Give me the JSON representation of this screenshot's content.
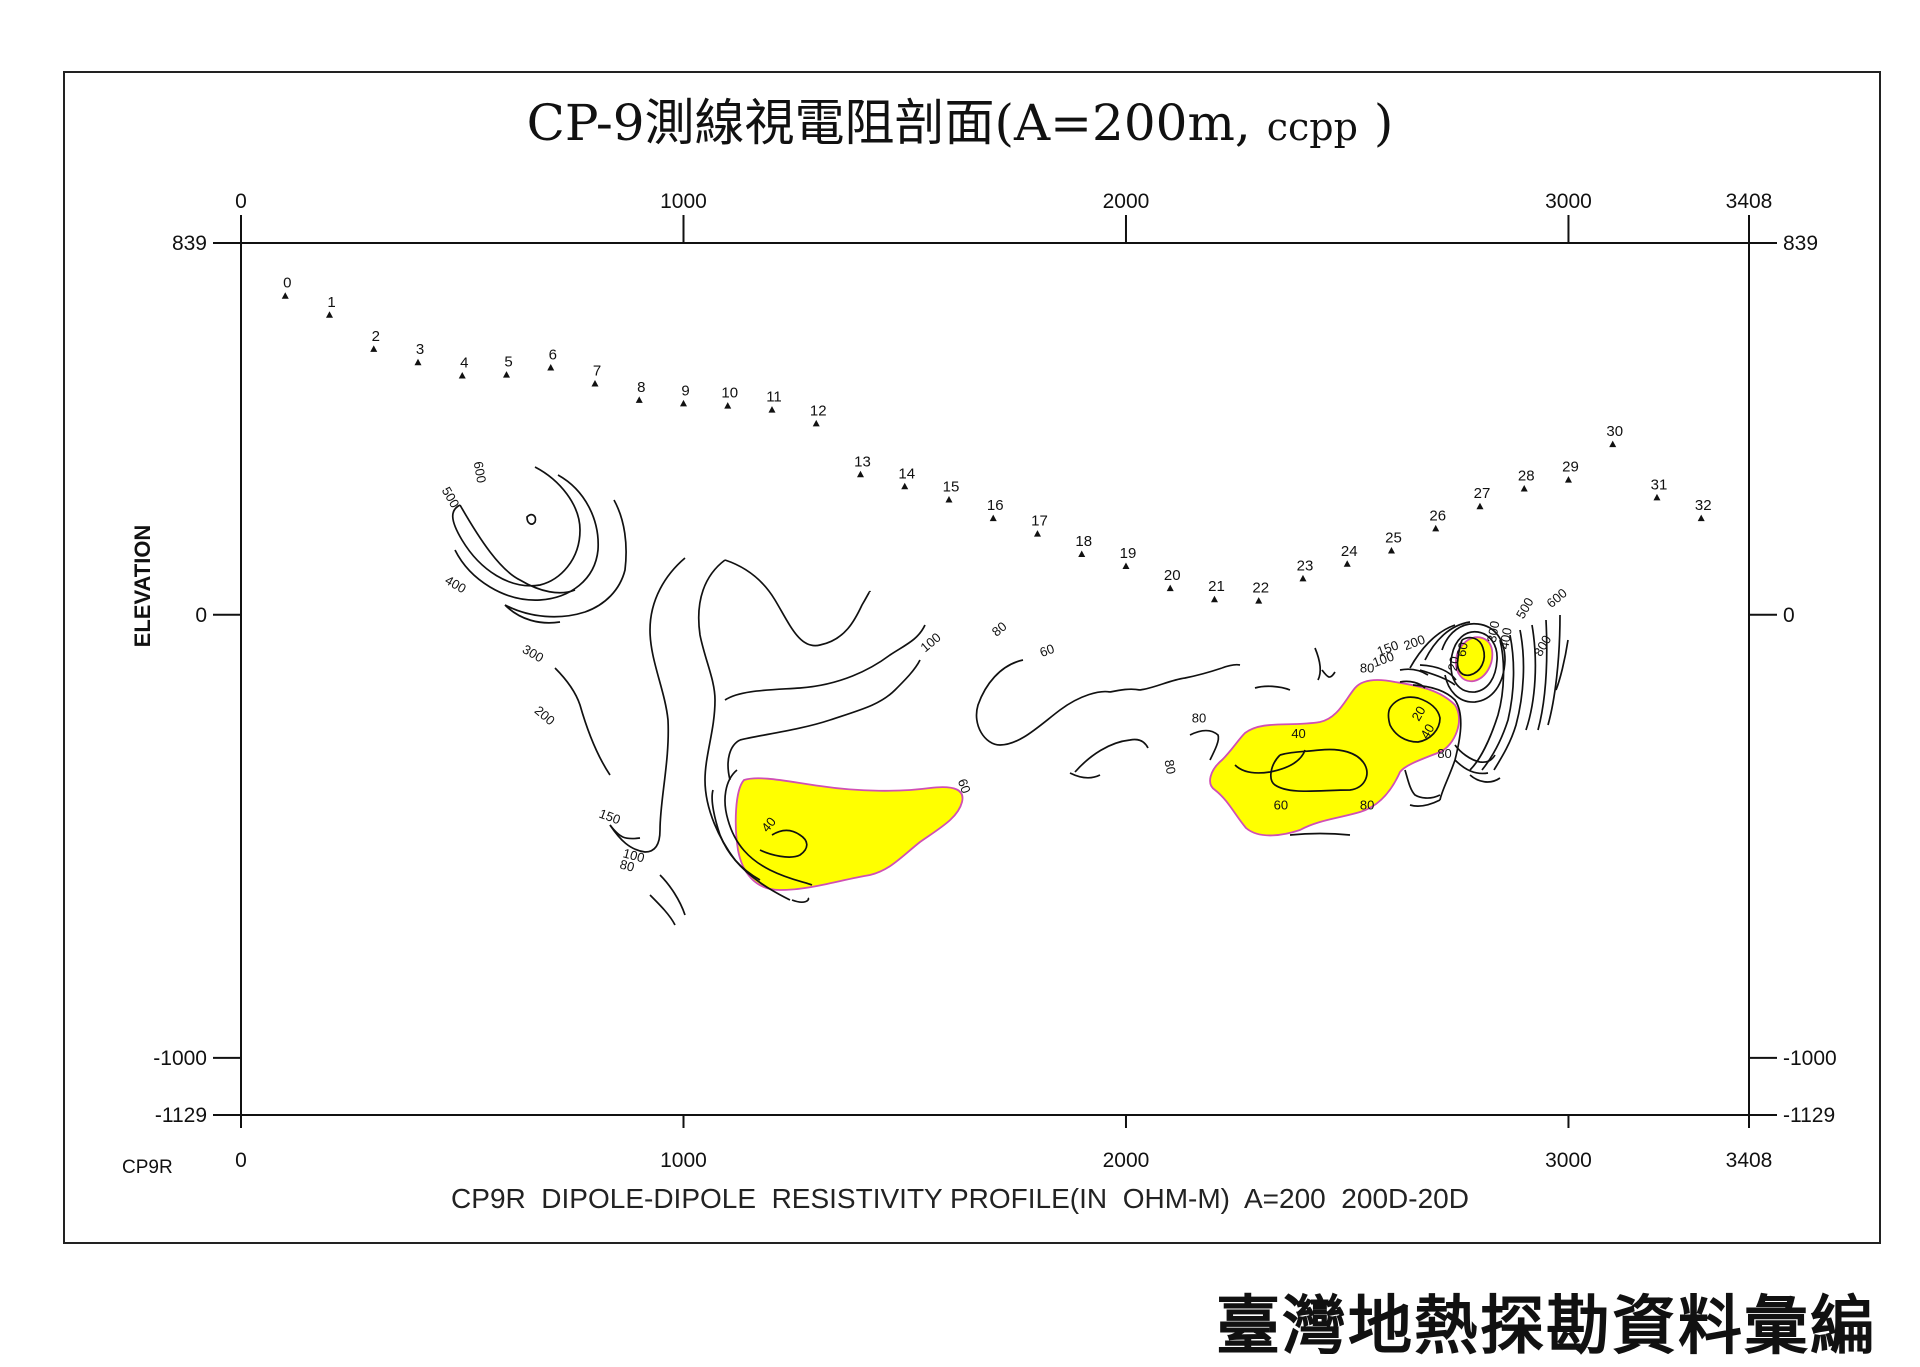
{
  "title_main": "CP-9測線視電阻剖面(A=200m,",
  "title_small": "ccpp",
  "title_end": ")",
  "subtitle": "CP9R  DIPOLE-DIPOLE  RESISTIVITY PROFILE(IN  OHM-M)  A=200  200D-20D",
  "footer": "臺灣地熱探勘資料彙編",
  "corner_label": "CP9R",
  "colors": {
    "anomaly_fill": "#ffff00",
    "anomaly_edge": "#d04fb5",
    "line": "#111111"
  },
  "chart_data": {
    "type": "contour",
    "xlim": [
      0,
      3408
    ],
    "ylim": [
      -1129,
      839
    ],
    "x_ticks": [
      "0",
      "1000",
      "2000",
      "3000",
      "3408"
    ],
    "x_tick_values": [
      0,
      1000,
      2000,
      3000,
      3408
    ],
    "y_ticks": [
      "839",
      "0",
      "-1000",
      "-1129"
    ],
    "y_tick_values": [
      839,
      0,
      -1000,
      -1129
    ],
    "ylabel": "ELEVATION",
    "stations": [
      {
        "id": "0",
        "x": 100,
        "y": 720
      },
      {
        "id": "1",
        "x": 200,
        "y": 677
      },
      {
        "id": "2",
        "x": 300,
        "y": 600
      },
      {
        "id": "3",
        "x": 400,
        "y": 570
      },
      {
        "id": "4",
        "x": 500,
        "y": 540
      },
      {
        "id": "5",
        "x": 600,
        "y": 542
      },
      {
        "id": "6",
        "x": 700,
        "y": 558
      },
      {
        "id": "7",
        "x": 800,
        "y": 522
      },
      {
        "id": "8",
        "x": 900,
        "y": 485
      },
      {
        "id": "9",
        "x": 1000,
        "y": 477
      },
      {
        "id": "10",
        "x": 1100,
        "y": 472
      },
      {
        "id": "11",
        "x": 1200,
        "y": 463
      },
      {
        "id": "12",
        "x": 1300,
        "y": 432
      },
      {
        "id": "13",
        "x": 1400,
        "y": 317
      },
      {
        "id": "14",
        "x": 1500,
        "y": 290
      },
      {
        "id": "15",
        "x": 1600,
        "y": 260
      },
      {
        "id": "16",
        "x": 1700,
        "y": 218
      },
      {
        "id": "17",
        "x": 1800,
        "y": 183
      },
      {
        "id": "18",
        "x": 1900,
        "y": 137
      },
      {
        "id": "19",
        "x": 2000,
        "y": 110
      },
      {
        "id": "20",
        "x": 2100,
        "y": 60
      },
      {
        "id": "21",
        "x": 2200,
        "y": 35
      },
      {
        "id": "22",
        "x": 2300,
        "y": 32
      },
      {
        "id": "23",
        "x": 2400,
        "y": 82
      },
      {
        "id": "24",
        "x": 2500,
        "y": 115
      },
      {
        "id": "25",
        "x": 2600,
        "y": 145
      },
      {
        "id": "26",
        "x": 2700,
        "y": 195
      },
      {
        "id": "27",
        "x": 2800,
        "y": 245
      },
      {
        "id": "28",
        "x": 2900,
        "y": 285
      },
      {
        "id": "29",
        "x": 3000,
        "y": 305
      },
      {
        "id": "30",
        "x": 3100,
        "y": 385
      },
      {
        "id": "31",
        "x": 3200,
        "y": 265
      },
      {
        "id": "32",
        "x": 3300,
        "y": 218
      }
    ],
    "contour_levels": [
      "20",
      "40",
      "60",
      "80",
      "100",
      "150",
      "200",
      "300",
      "400",
      "500",
      "600",
      "800"
    ],
    "contour_labels": [
      {
        "t": "600",
        "x": 530,
        "y": 320,
        "r": 80
      },
      {
        "t": "500",
        "x": 465,
        "y": 260,
        "r": 60
      },
      {
        "t": "400",
        "x": 480,
        "y": 60,
        "r": 30
      },
      {
        "t": "300",
        "x": 655,
        "y": -96,
        "r": 30
      },
      {
        "t": "200",
        "x": 680,
        "y": -235,
        "r": 40
      },
      {
        "t": "150",
        "x": 830,
        "y": -465,
        "r": 20
      },
      {
        "t": "100",
        "x": 885,
        "y": -553,
        "r": 15
      },
      {
        "t": "80",
        "x": 870,
        "y": -576,
        "r": 15
      },
      {
        "t": "100",
        "x": 1565,
        "y": -70,
        "r": -40
      },
      {
        "t": "80",
        "x": 1720,
        "y": -40,
        "r": -40
      },
      {
        "t": "60",
        "x": 1825,
        "y": -90,
        "r": -20
      },
      {
        "t": "60",
        "x": 1625,
        "y": -390,
        "r": 70
      },
      {
        "t": "40",
        "x": 1200,
        "y": -480,
        "r": -50
      },
      {
        "t": "80",
        "x": 2165,
        "y": -243,
        "r": 0
      },
      {
        "t": "80",
        "x": 2090,
        "y": -345,
        "r": 80
      },
      {
        "t": "40",
        "x": 2390,
        "y": -278,
        "r": 0
      },
      {
        "t": "60",
        "x": 2350,
        "y": -440,
        "r": 0
      },
      {
        "t": "80",
        "x": 2545,
        "y": -440,
        "r": 0
      },
      {
        "t": "80",
        "x": 2720,
        "y": -323,
        "r": 0
      },
      {
        "t": "20",
        "x": 2670,
        "y": -228,
        "r": -60
      },
      {
        "t": "40",
        "x": 2690,
        "y": -268,
        "r": -60
      },
      {
        "t": "80",
        "x": 2545,
        "y": -130,
        "r": 0
      },
      {
        "t": "100",
        "x": 2585,
        "y": -110,
        "r": -20
      },
      {
        "t": "150",
        "x": 2595,
        "y": -85,
        "r": -20
      },
      {
        "t": "200",
        "x": 2655,
        "y": -72,
        "r": -20
      },
      {
        "t": "20",
        "x": 2750,
        "y": -112,
        "r": -80
      },
      {
        "t": "60",
        "x": 2770,
        "y": -80,
        "r": -80
      },
      {
        "t": "300",
        "x": 2840,
        "y": -40,
        "r": -80
      },
      {
        "t": "400",
        "x": 2868,
        "y": -55,
        "r": -80
      },
      {
        "t": "500",
        "x": 2910,
        "y": 10,
        "r": -60
      },
      {
        "t": "600",
        "x": 2980,
        "y": 30,
        "r": -40
      },
      {
        "t": "800",
        "x": 2950,
        "y": -75,
        "r": -60
      }
    ]
  }
}
